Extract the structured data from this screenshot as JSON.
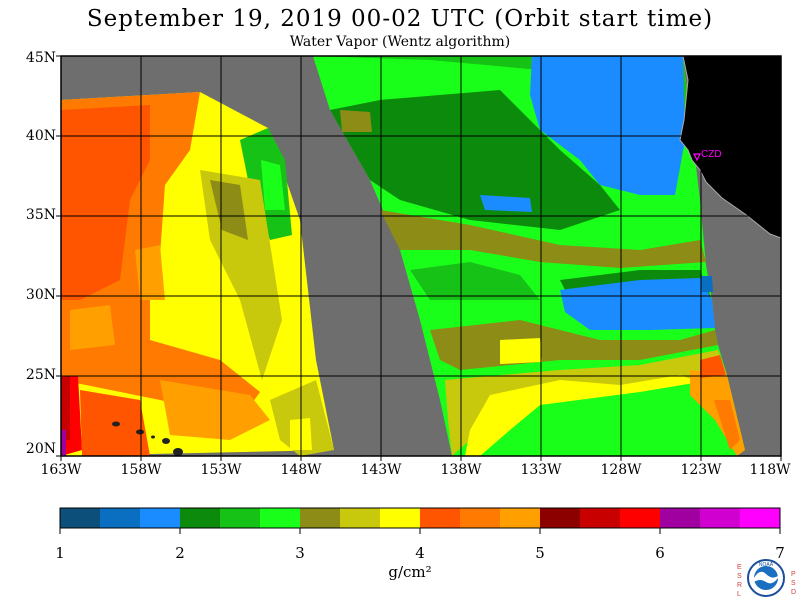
{
  "header": {
    "title": "September 19, 2019  00-02 UTC  (Orbit start time)",
    "subtitle": "Water Vapor (Wentz algorithm)"
  },
  "map": {
    "lat_labels": [
      "45N",
      "40N",
      "35N",
      "30N",
      "25N",
      "20N"
    ],
    "lon_labels": [
      "163W",
      "158W",
      "153W",
      "148W",
      "143W",
      "138W",
      "133W",
      "128W",
      "123W",
      "118W"
    ],
    "station_label": "CZD",
    "station_color": "#ff00ff",
    "land_color": "#000000",
    "no_data_color": "#6e6e6e"
  },
  "colorbar": {
    "colors": [
      "#0c4f7a",
      "#0a6fc0",
      "#1a8cff",
      "#0c8a0c",
      "#16c216",
      "#1aff1a",
      "#8c8c16",
      "#c8c80c",
      "#ffff00",
      "#ff5500",
      "#ff7a00",
      "#ffa000",
      "#8c0000",
      "#c80000",
      "#ff0000",
      "#a000a0",
      "#d000d0",
      "#ff00ff"
    ],
    "tick_labels": [
      "1",
      "2",
      "3",
      "4",
      "5",
      "6",
      "7"
    ],
    "units_label": "g/cm²"
  },
  "logo": {
    "left_text": "ESRL",
    "right_text": "PSD",
    "center_text": "NOAA"
  }
}
